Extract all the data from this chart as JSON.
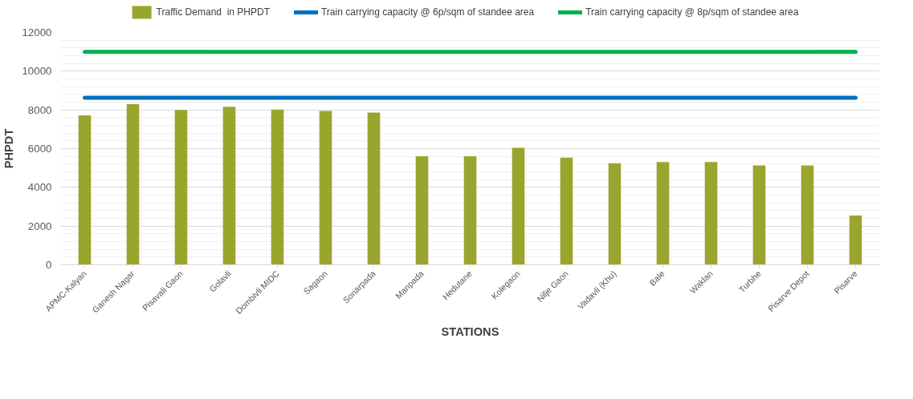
{
  "chart_data": {
    "type": "bar",
    "xlabel": "STATIONS",
    "ylabel": "PHPDT",
    "categories": [
      "APMC-Kalyan",
      "Ganesh Nagar",
      "Pisavali Gaon",
      "Golavli",
      "Dombivli MIDC",
      "Sagaon",
      "Sonarpada",
      "Manpada",
      "Hedutane",
      "Kolegaon",
      "Nilje Gaon",
      "Vadavli (Khu)",
      "Bale",
      "Waklan",
      "Turbhe",
      "Pisarve Depot",
      "Pisarve"
    ],
    "series": [
      {
        "name": "Traffic Demand  in PHPDT",
        "color": "#9aa52e",
        "values": [
          7720,
          8300,
          8000,
          8160,
          8020,
          7940,
          7860,
          5610,
          5610,
          6040,
          5530,
          5250,
          5310,
          5310,
          5130,
          5130,
          2540
        ]
      },
      {
        "name": "Train carrying capacity @ 6p/sqm of standee area",
        "type": "line",
        "color": "#0070c0",
        "values": [
          8630,
          8630,
          8630,
          8630,
          8630,
          8630,
          8630,
          8630,
          8630,
          8630,
          8630,
          8630,
          8630,
          8630,
          8630,
          8630,
          8630
        ]
      },
      {
        "name": "Train carrying capacity @ 8p/sqm of standee area",
        "type": "line",
        "color": "#00b050",
        "values": [
          11000,
          11000,
          11000,
          11000,
          11000,
          11000,
          11000,
          11000,
          11000,
          11000,
          11000,
          11000,
          11000,
          11000,
          11000,
          11000,
          11000
        ]
      }
    ],
    "ylim": [
      0,
      12000
    ],
    "yticks": [
      0,
      2000,
      4000,
      6000,
      8000,
      10000,
      12000
    ],
    "grid": "y",
    "legend": "top",
    "marker": "none",
    "line_style": "solid"
  }
}
